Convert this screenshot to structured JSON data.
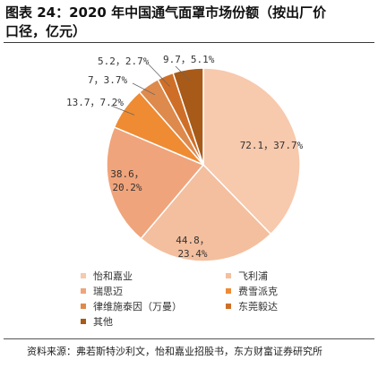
{
  "header": {
    "title_line1": "图表 24：2020 年中国通气面罩市场份额（按出厂价",
    "title_line2": "口径，亿元）"
  },
  "source": "资料来源：弗若斯特沙利文，怡和嘉业招股书，东方财富证券研究所",
  "chart_data": {
    "type": "pie",
    "title": "",
    "slices": [
      {
        "name": "怡和嘉业",
        "value": 72.1,
        "percent": 37.7,
        "label_1": "72.1，37.7%",
        "label_2": "",
        "color": "#F7C9AD"
      },
      {
        "name": "飞利浦",
        "value": 44.8,
        "percent": 23.4,
        "label_1": "44.8，",
        "label_2": "23.4%",
        "color": "#F4BF9E"
      },
      {
        "name": "瑞思迈",
        "value": 38.6,
        "percent": 20.2,
        "label_1": "38.6，",
        "label_2": "20.2%",
        "color": "#F0A47B"
      },
      {
        "name": "费雪派克",
        "value": 13.7,
        "percent": 7.2,
        "label_1": "13.7，7.2%",
        "label_2": "",
        "color": "#EE8B33"
      },
      {
        "name": "律维施泰因（万曼）",
        "value": 7,
        "percent": 3.7,
        "label_1": "7，3.7%",
        "label_2": "",
        "color": "#DE8A4C"
      },
      {
        "name": "东莞毅达",
        "value": 5.2,
        "percent": 2.7,
        "label_1": "5.2，2.7%",
        "label_2": "",
        "color": "#CF6F27"
      },
      {
        "name": "其他",
        "value": 9.7,
        "percent": 5.1,
        "label_1": "9.7，5.1%",
        "label_2": "",
        "color": "#A85A18"
      }
    ],
    "legend_position": "bottom"
  }
}
